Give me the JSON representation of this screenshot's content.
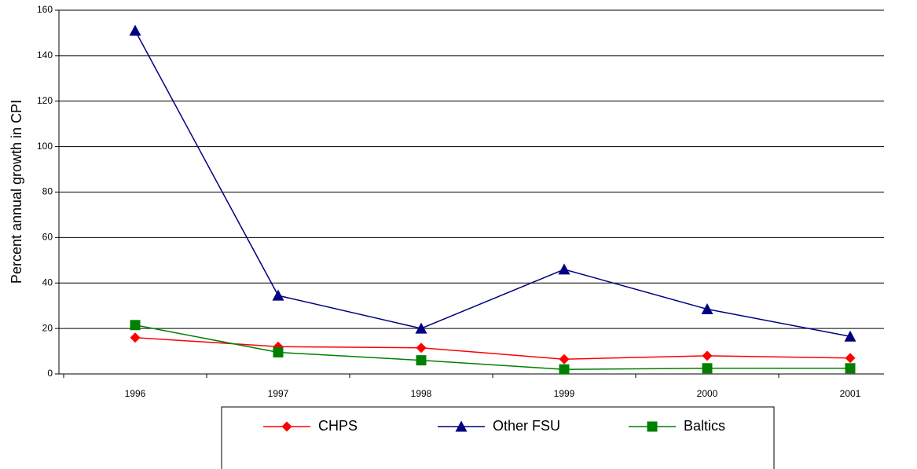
{
  "chart_data": {
    "type": "line",
    "y_label": "Percent annual growth in CPI",
    "categories": [
      "1996",
      "1997",
      "1998",
      "1999",
      "2000",
      "2001"
    ],
    "series": [
      {
        "name": "CHPS",
        "color": "#ff0000",
        "marker": "diamond",
        "values": [
          16,
          12,
          11.5,
          6.5,
          8,
          7
        ]
      },
      {
        "name": "Other FSU",
        "color": "#000080",
        "marker": "triangle",
        "values": [
          151,
          34.5,
          20,
          46,
          28.5,
          16.5
        ]
      },
      {
        "name": "Baltics",
        "color": "#008000",
        "marker": "square",
        "values": [
          21.5,
          9.5,
          6,
          2,
          2.5,
          2.5
        ]
      }
    ],
    "ylim": [
      0,
      160
    ],
    "yticks": [
      0,
      20,
      40,
      60,
      80,
      100,
      120,
      140,
      160
    ],
    "grid": true,
    "legend": "bottom"
  }
}
